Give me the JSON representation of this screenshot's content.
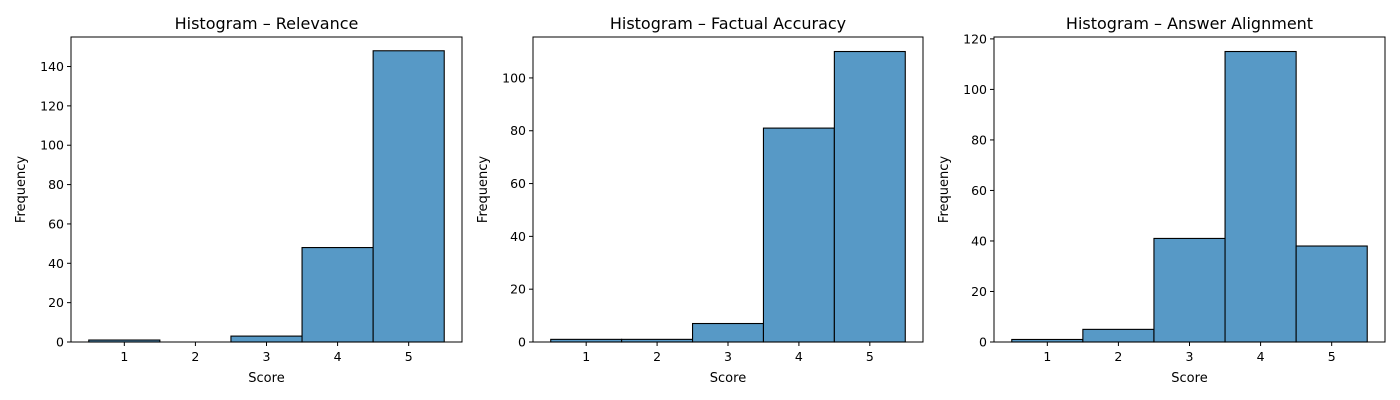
{
  "colors": {
    "bar_fill": "#5799c6",
    "bar_edge": "#000000",
    "background": "#ffffff"
  },
  "chart_data": [
    {
      "type": "bar",
      "title": "Histogram – Relevance",
      "xlabel": "Score",
      "ylabel": "Frequency",
      "categories": [
        "1",
        "2",
        "3",
        "4",
        "5"
      ],
      "values": [
        1,
        0,
        3,
        48,
        148
      ],
      "ylim": [
        0,
        155
      ],
      "yticks": [
        0,
        20,
        40,
        60,
        80,
        100,
        120,
        140
      ],
      "grid": false
    },
    {
      "type": "bar",
      "title": "Histogram – Factual Accuracy",
      "xlabel": "Score",
      "ylabel": "Frequency",
      "categories": [
        "1",
        "2",
        "3",
        "4",
        "5"
      ],
      "values": [
        1,
        1,
        7,
        81,
        110
      ],
      "ylim": [
        0,
        115.5
      ],
      "yticks": [
        0,
        20,
        40,
        60,
        80,
        100
      ],
      "grid": false
    },
    {
      "type": "bar",
      "title": "Histogram – Answer Alignment",
      "xlabel": "Score",
      "ylabel": "Frequency",
      "categories": [
        "1",
        "2",
        "3",
        "4",
        "5"
      ],
      "values": [
        1,
        5,
        41,
        115,
        38
      ],
      "ylim": [
        0,
        120.75
      ],
      "yticks": [
        0,
        20,
        40,
        60,
        80,
        100,
        120
      ],
      "grid": false
    }
  ]
}
